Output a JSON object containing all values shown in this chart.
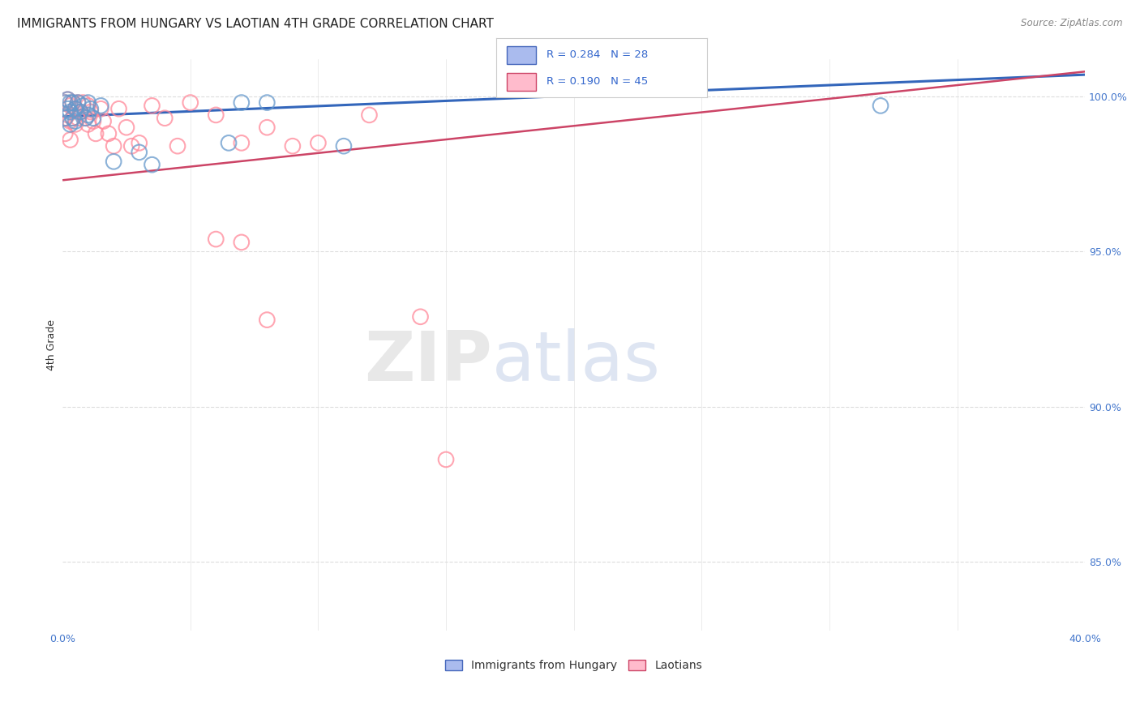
{
  "title": "IMMIGRANTS FROM HUNGARY VS LAOTIAN 4TH GRADE CORRELATION CHART",
  "source": "Source: ZipAtlas.com",
  "ylabel": "4th Grade",
  "xlim": [
    0.0,
    0.4
  ],
  "ylim": [
    0.828,
    1.012
  ],
  "xticks": [
    0.0,
    0.05,
    0.1,
    0.15,
    0.2,
    0.25,
    0.3,
    0.35,
    0.4
  ],
  "xticklabels": [
    "0.0%",
    "",
    "",
    "",
    "",
    "",
    "",
    "",
    "40.0%"
  ],
  "yticks": [
    0.85,
    0.9,
    0.95,
    1.0
  ],
  "yticklabels": [
    "85.0%",
    "90.0%",
    "95.0%",
    "100.0%"
  ],
  "blue_color": "#6699CC",
  "pink_color": "#FF8899",
  "blue_line_color": "#3366BB",
  "pink_line_color": "#CC4466",
  "blue_R": 0.284,
  "blue_N": 28,
  "pink_R": 0.19,
  "pink_N": 45,
  "blue_trend_x": [
    0.0,
    0.4
  ],
  "blue_trend_y": [
    0.9935,
    1.007
  ],
  "pink_trend_x": [
    0.0,
    0.4
  ],
  "pink_trend_y": [
    0.973,
    1.008
  ],
  "blue_x": [
    0.001,
    0.001,
    0.002,
    0.002,
    0.003,
    0.003,
    0.003,
    0.004,
    0.004,
    0.005,
    0.005,
    0.006,
    0.007,
    0.008,
    0.009,
    0.01,
    0.01,
    0.011,
    0.012,
    0.015,
    0.02,
    0.03,
    0.035,
    0.065,
    0.07,
    0.08,
    0.11,
    0.32
  ],
  "blue_y": [
    0.998,
    0.993,
    0.999,
    0.996,
    0.998,
    0.995,
    0.991,
    0.998,
    0.993,
    0.996,
    0.992,
    0.998,
    0.995,
    0.997,
    0.993,
    0.998,
    0.994,
    0.996,
    0.993,
    0.997,
    0.979,
    0.982,
    0.978,
    0.985,
    0.998,
    0.998,
    0.984,
    0.997
  ],
  "pink_x": [
    0.001,
    0.001,
    0.001,
    0.002,
    0.002,
    0.003,
    0.003,
    0.003,
    0.004,
    0.004,
    0.005,
    0.005,
    0.006,
    0.006,
    0.007,
    0.008,
    0.009,
    0.01,
    0.01,
    0.011,
    0.012,
    0.013,
    0.015,
    0.016,
    0.018,
    0.02,
    0.022,
    0.025,
    0.027,
    0.03,
    0.035,
    0.04,
    0.045,
    0.05,
    0.06,
    0.07,
    0.08,
    0.09,
    0.1,
    0.12,
    0.06,
    0.07,
    0.08,
    0.14,
    0.15
  ],
  "pink_y": [
    0.998,
    0.993,
    0.988,
    0.999,
    0.994,
    0.997,
    0.992,
    0.986,
    0.998,
    0.993,
    0.996,
    0.991,
    0.998,
    0.993,
    0.995,
    0.998,
    0.993,
    0.997,
    0.991,
    0.995,
    0.992,
    0.988,
    0.996,
    0.992,
    0.988,
    0.984,
    0.996,
    0.99,
    0.984,
    0.985,
    0.997,
    0.993,
    0.984,
    0.998,
    0.994,
    0.985,
    0.99,
    0.984,
    0.985,
    0.994,
    0.954,
    0.953,
    0.928,
    0.929,
    0.883
  ],
  "background_color": "#FFFFFF",
  "grid_color": "#DDDDDD",
  "title_fontsize": 11,
  "axis_label_fontsize": 9,
  "tick_fontsize": 9,
  "tick_color": "#4477CC",
  "legend_label_blue": "Immigrants from Hungary",
  "legend_label_pink": "Laotians"
}
